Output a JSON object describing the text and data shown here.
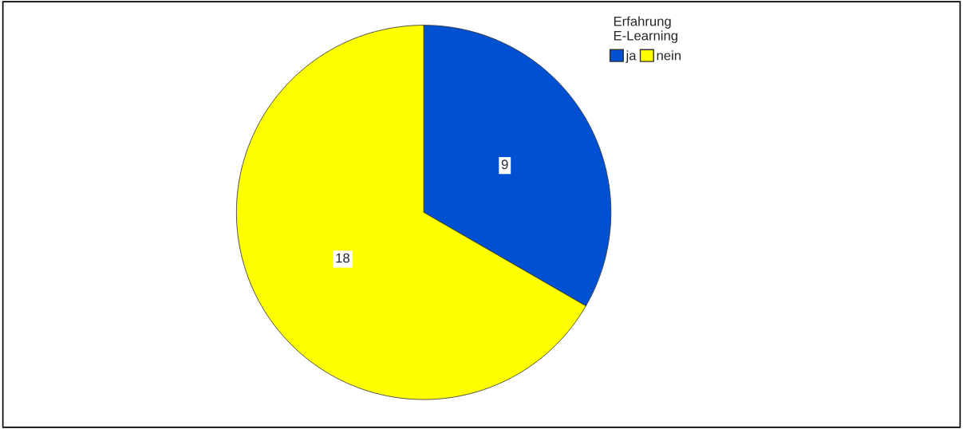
{
  "chart_data": {
    "type": "pie",
    "legend_title": "Erfahrung\nE-Learning",
    "categories": [
      "ja",
      "nein"
    ],
    "values": [
      9,
      18
    ],
    "colors": [
      "#0050d2",
      "#ffff00"
    ],
    "data_labels": true,
    "legend": "top right"
  }
}
